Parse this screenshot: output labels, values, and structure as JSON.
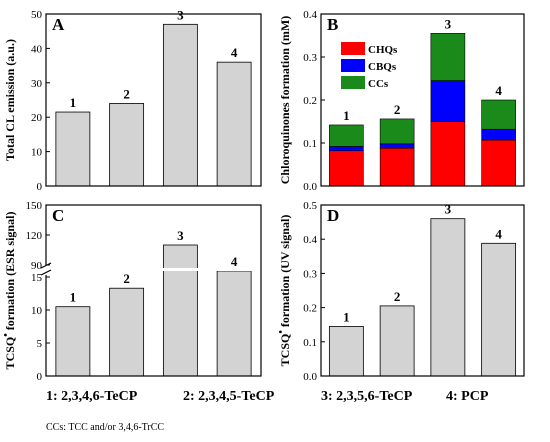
{
  "chart_data": [
    {
      "type": "bar",
      "panel": "A",
      "ylabel": "Total CL emission (a.u.)",
      "ylim": [
        0,
        50
      ],
      "yticks": [
        0,
        10,
        20,
        30,
        40,
        50
      ],
      "categories": [
        "1",
        "2",
        "3",
        "4"
      ],
      "values": [
        21.5,
        24,
        47,
        36
      ],
      "color": "#d3d3d3"
    },
    {
      "type": "bar",
      "stacked": true,
      "panel": "B",
      "ylabel": "Chloroquinones formation (mM)",
      "ylim": [
        0,
        0.4
      ],
      "yticks": [
        0.0,
        0.1,
        0.2,
        0.3,
        0.4
      ],
      "categories": [
        "1",
        "2",
        "3",
        "4"
      ],
      "legend_position": "top-left",
      "series": [
        {
          "name": "CHQs",
          "color": "#ff0000",
          "values": [
            0.082,
            0.088,
            0.15,
            0.107
          ]
        },
        {
          "name": "CBQs",
          "color": "#0000ff",
          "values": [
            0.01,
            0.01,
            0.095,
            0.025
          ]
        },
        {
          "name": "CCs",
          "color": "#1a8a1a",
          "values": [
            0.05,
            0.058,
            0.11,
            0.068
          ]
        }
      ]
    },
    {
      "type": "bar",
      "panel": "C",
      "ylabel": "TCSQ• formation (ESR signal)",
      "ylabel_parts": [
        "TCSQ",
        "•",
        " formation (ESR signal)"
      ],
      "axis_break": true,
      "ylim_lower": [
        0,
        15
      ],
      "yticks_lower": [
        0,
        5,
        10,
        15
      ],
      "ylim_upper": [
        90,
        150
      ],
      "yticks_upper": [
        90,
        120,
        150
      ],
      "categories": [
        "1",
        "2",
        "3",
        "4"
      ],
      "values": [
        10.5,
        13.3,
        110,
        84
      ],
      "color": "#d3d3d3"
    },
    {
      "type": "bar",
      "panel": "D",
      "ylabel": "TCSQ• formation (UV signal)",
      "ylabel_parts": [
        "TCSQ",
        "•",
        " formation (UV signal)"
      ],
      "ylim": [
        0,
        0.5
      ],
      "yticks": [
        0.0,
        0.1,
        0.2,
        0.3,
        0.4,
        0.5
      ],
      "categories": [
        "1",
        "2",
        "3",
        "4"
      ],
      "values": [
        0.145,
        0.205,
        0.46,
        0.388
      ],
      "color": "#d3d3d3"
    }
  ],
  "compounds": [
    "1: 2,3,4,6-TeCP",
    "2: 2,3,4,5-TeCP",
    "3: 2,3,5,6-TeCP",
    "4: PCP"
  ],
  "footnote": "CCs: TCC and/or 3,4,6-TrCC"
}
